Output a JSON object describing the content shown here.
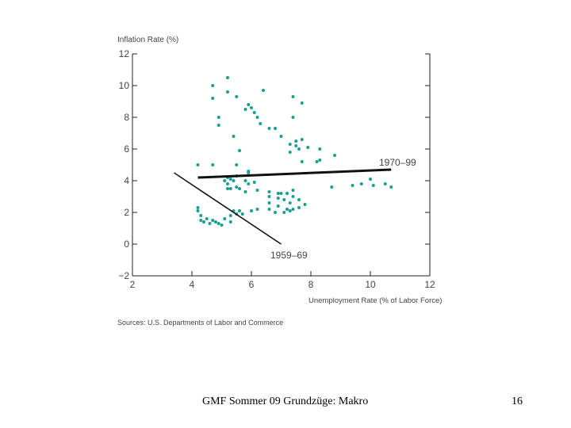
{
  "chart_data": {
    "type": "scatter",
    "title": "Inflation Rate (%)",
    "xlabel": "Unemployment Rate (% of Labor Force)",
    "ylabel": "Inflation Rate (%)",
    "xlim": [
      2,
      12
    ],
    "ylim": [
      -2,
      12
    ],
    "x_ticks": [
      2,
      4,
      6,
      8,
      10,
      12
    ],
    "y_ticks": [
      -2,
      0,
      2,
      4,
      6,
      8,
      10,
      12
    ],
    "grid": false,
    "source": "Sources: U.S. Departments of Labor and Commerce",
    "points": [
      [
        5.2,
        10.5
      ],
      [
        4.7,
        10.0
      ],
      [
        5.2,
        9.6
      ],
      [
        4.7,
        9.2
      ],
      [
        5.5,
        9.3
      ],
      [
        6.4,
        9.7
      ],
      [
        7.4,
        9.3
      ],
      [
        7.7,
        8.9
      ],
      [
        6.1,
        8.3
      ],
      [
        5.9,
        8.8
      ],
      [
        6.0,
        8.6
      ],
      [
        5.8,
        8.5
      ],
      [
        6.2,
        8.0
      ],
      [
        4.9,
        8.0
      ],
      [
        7.4,
        8.0
      ],
      [
        6.3,
        7.6
      ],
      [
        4.9,
        7.5
      ],
      [
        6.6,
        7.3
      ],
      [
        6.8,
        7.3
      ],
      [
        7.0,
        6.8
      ],
      [
        5.4,
        6.8
      ],
      [
        7.5,
        6.5
      ],
      [
        7.7,
        6.6
      ],
      [
        7.3,
        6.3
      ],
      [
        7.5,
        6.2
      ],
      [
        7.9,
        6.1
      ],
      [
        7.6,
        6.0
      ],
      [
        8.3,
        6.0
      ],
      [
        7.3,
        5.8
      ],
      [
        5.6,
        5.9
      ],
      [
        8.8,
        5.6
      ],
      [
        8.3,
        5.3
      ],
      [
        8.2,
        5.2
      ],
      [
        7.7,
        5.2
      ],
      [
        5.5,
        5.0
      ],
      [
        4.2,
        5.0
      ],
      [
        4.7,
        5.0
      ],
      [
        5.9,
        4.6
      ],
      [
        5.9,
        4.5
      ],
      [
        10.0,
        4.1
      ],
      [
        9.7,
        3.8
      ],
      [
        10.5,
        3.8
      ],
      [
        10.7,
        3.6
      ],
      [
        10.1,
        3.7
      ],
      [
        9.4,
        3.7
      ],
      [
        8.7,
        3.6
      ],
      [
        5.2,
        4.2
      ],
      [
        5.5,
        4.3
      ],
      [
        5.3,
        4.1
      ],
      [
        5.4,
        4.0
      ],
      [
        5.8,
        4.0
      ],
      [
        5.9,
        3.8
      ],
      [
        6.1,
        3.9
      ],
      [
        5.2,
        3.8
      ],
      [
        5.5,
        3.6
      ],
      [
        5.3,
        3.5
      ],
      [
        5.2,
        3.5
      ],
      [
        5.6,
        3.5
      ],
      [
        6.2,
        3.4
      ],
      [
        5.8,
        3.3
      ],
      [
        5.1,
        4.0
      ],
      [
        6.6,
        3.3
      ],
      [
        6.9,
        3.2
      ],
      [
        7.0,
        3.2
      ],
      [
        7.4,
        3.4
      ],
      [
        7.2,
        3.2
      ],
      [
        6.6,
        3.0
      ],
      [
        7.4,
        3.0
      ],
      [
        6.9,
        2.9
      ],
      [
        7.6,
        2.8
      ],
      [
        7.1,
        2.8
      ],
      [
        7.3,
        2.6
      ],
      [
        6.6,
        2.6
      ],
      [
        6.9,
        2.4
      ],
      [
        7.8,
        2.5
      ],
      [
        7.6,
        2.3
      ],
      [
        7.2,
        2.2
      ],
      [
        7.4,
        2.2
      ],
      [
        7.3,
        2.1
      ],
      [
        6.8,
        2.0
      ],
      [
        6.6,
        2.2
      ],
      [
        6.2,
        2.2
      ],
      [
        6.0,
        2.1
      ],
      [
        7.1,
        2.0
      ],
      [
        5.4,
        2.1
      ],
      [
        5.6,
        2.1
      ],
      [
        5.5,
        1.9
      ],
      [
        5.3,
        1.8
      ],
      [
        5.7,
        1.9
      ],
      [
        4.2,
        2.3
      ],
      [
        4.3,
        1.8
      ],
      [
        4.5,
        1.6
      ],
      [
        4.7,
        1.5
      ],
      [
        4.9,
        1.3
      ],
      [
        5.0,
        1.2
      ],
      [
        5.1,
        1.6
      ],
      [
        4.6,
        1.3
      ],
      [
        4.4,
        1.4
      ],
      [
        4.3,
        1.5
      ],
      [
        4.8,
        1.4
      ],
      [
        4.2,
        2.1
      ],
      [
        5.3,
        1.4
      ]
    ],
    "lines": [
      {
        "label": "1970–99",
        "x": [
          4.2,
          10.7
        ],
        "y": [
          4.2,
          4.7
        ]
      },
      {
        "label": "1959–69",
        "x": [
          3.4,
          7.0
        ],
        "y": [
          4.5,
          0.0
        ]
      }
    ]
  },
  "footer": {
    "text": "GMF Sommer 09 Grundzüge: Makro",
    "page_number": "16"
  },
  "colors": {
    "points": "#1a9e93",
    "lines": "#111111",
    "axes": "#222222"
  }
}
